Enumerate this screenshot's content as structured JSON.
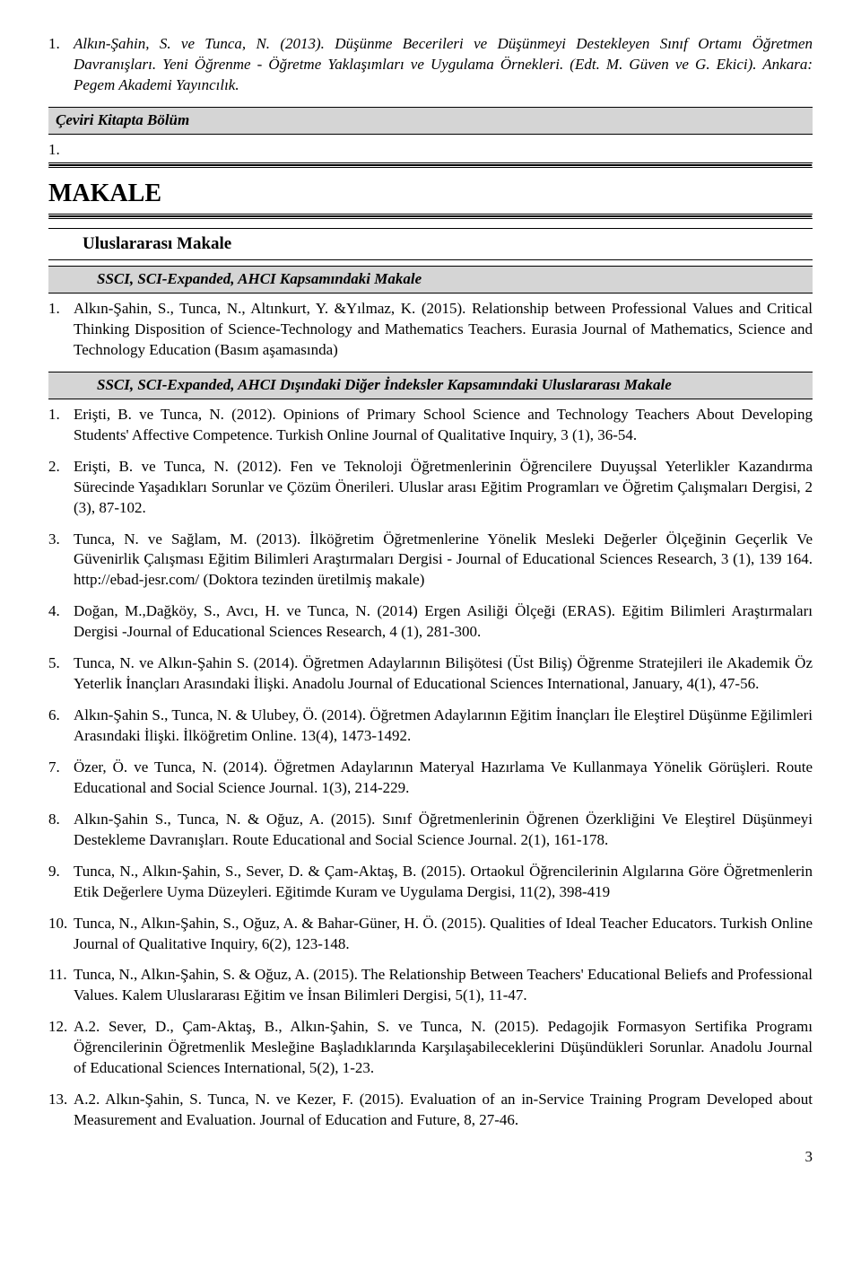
{
  "top_book_entry": {
    "num": "1.",
    "text": "Alkın-Şahin, S. ve Tunca, N. (2013). Düşünme Becerileri ve Düşünmeyi Destekleyen Sınıf Ortamı Öğretmen Davranışları. Yeni Öğrenme - Öğretme Yaklaşımları ve Uygulama Örnekleri. (Edt. M. Güven ve G. Ekici). Ankara: Pegem Akademi Yayıncılık."
  },
  "band_ceviri": "Çeviri Kitapta Bölüm",
  "one_standalone": "1.",
  "h1": "MAKALE",
  "sub_ulus": "Uluslararası Makale",
  "band_ssci1": "SSCI, SCI-Expanded, AHCI Kapsamındaki Makale",
  "ssci1_entry": {
    "num": "1.",
    "text": "Alkın-Şahin, S., Tunca, N., Altınkurt, Y. &Yılmaz, K. (2015). Relationship between Professional Values and Critical Thinking Disposition of Science-Technology and Mathematics Teachers. Eurasia Journal of Mathematics, Science and Technology Education (Basım aşamasında)"
  },
  "band_ssci2": "SSCI, SCI-Expanded, AHCI Dışındaki Diğer İndeksler Kapsamındaki Uluslararası Makale",
  "entries": [
    {
      "num": "1.",
      "text": "Erişti, B. ve Tunca, N. (2012). Opinions of Primary School Science and Technology Teachers About Developing Students' Affective Competence. Turkish Online Journal of Qualitative Inquiry, 3 (1), 36-54."
    },
    {
      "num": "2.",
      "text": "Erişti, B. ve Tunca, N. (2012). Fen ve Teknoloji Öğretmenlerinin Öğrencilere Duyuşsal Yeterlikler Kazandırma Sürecinde Yaşadıkları Sorunlar ve Çözüm Önerileri. Uluslar arası Eğitim Programları ve Öğretim Çalışmaları Dergisi, 2 (3), 87-102."
    },
    {
      "num": "3.",
      "text": "Tunca, N. ve Sağlam, M. (2013). İlköğretim Öğretmenlerine Yönelik Mesleki Değerler Ölçeğinin Geçerlik Ve Güvenirlik Çalışması Eğitim Bilimleri Araştırmaları Dergisi - Journal of Educational Sciences Research, 3 (1), 139 164. http://ebad-jesr.com/ (Doktora tezinden üretilmiş makale)"
    },
    {
      "num": "4.",
      "text": "Doğan, M.,Dağköy, S., Avcı, H. ve Tunca, N. (2014) Ergen Asiliği Ölçeği (ERAS). Eğitim Bilimleri Araştırmaları Dergisi -Journal of Educational Sciences Research, 4 (1), 281-300."
    },
    {
      "num": "5.",
      "text": "Tunca, N. ve Alkın-Şahin S. (2014). Öğretmen Adaylarının Bilişötesi (Üst Biliş) Öğrenme Stratejileri ile Akademik Öz Yeterlik İnançları Arasındaki İlişki. Anadolu Journal of Educational Sciences International, January, 4(1), 47-56."
    },
    {
      "num": "6.",
      "text": "Alkın-Şahin S., Tunca, N. & Ulubey, Ö. (2014). Öğretmen Adaylarının Eğitim İnançları İle Eleştirel Düşünme Eğilimleri Arasındaki İlişki. İlköğretim Online. 13(4), 1473-1492."
    },
    {
      "num": "7.",
      "text": "Özer, Ö. ve Tunca, N. (2014). Öğretmen Adaylarının Materyal Hazırlama Ve Kullanmaya Yönelik Görüşleri.  Route Educational and Social Science Journal. 1(3), 214-229."
    },
    {
      "num": "8.",
      "text": "Alkın-Şahin S., Tunca, N. & Oğuz, A. (2015). Sınıf Öğretmenlerinin Öğrenen Özerkliğini Ve Eleştirel Düşünmeyi Destekleme Davranışları. Route Educational and Social Science Journal. 2(1), 161-178."
    },
    {
      "num": "9.",
      "text": "Tunca, N., Alkın-Şahin, S., Sever, D. & Çam-Aktaş, B. (2015). Ortaokul Öğrencilerinin Algılarına Göre Öğretmenlerin Etik Değerlere Uyma Düzeyleri. Eğitimde Kuram ve Uygulama Dergisi, 11(2), 398-419"
    },
    {
      "num": "10.",
      "text": "Tunca, N., Alkın-Şahin, S., Oğuz, A. & Bahar-Güner, H. Ö. (2015). Qualities of Ideal Teacher Educators. Turkish Online Journal of Qualitative Inquiry, 6(2), 123-148."
    },
    {
      "num": "11.",
      "text": "Tunca, N., Alkın-Şahin, S. & Oğuz, A. (2015). The Relationship Between Teachers' Educational Beliefs and Professional Values.  Kalem Uluslararası Eğitim ve İnsan Bilimleri Dergisi, 5(1), 11-47."
    },
    {
      "num": "12.",
      "text": "A.2. Sever, D., Çam-Aktaş, B., Alkın-Şahin, S. ve Tunca, N. (2015). Pedagojik Formasyon Sertifika Programı Öğrencilerinin Öğretmenlik Mesleğine Başladıklarında Karşılaşabileceklerini Düşündükleri Sorunlar. Anadolu Journal of Educational Sciences International, 5(2), 1-23."
    },
    {
      "num": "13.",
      "text": "A.2. Alkın-Şahin, S. Tunca, N. ve Kezer, F. (2015). Evaluation of an in-Service Training Program Developed about Measurement and Evaluation. Journal of Education and Future, 8, 27-46."
    }
  ],
  "page_num": "3"
}
